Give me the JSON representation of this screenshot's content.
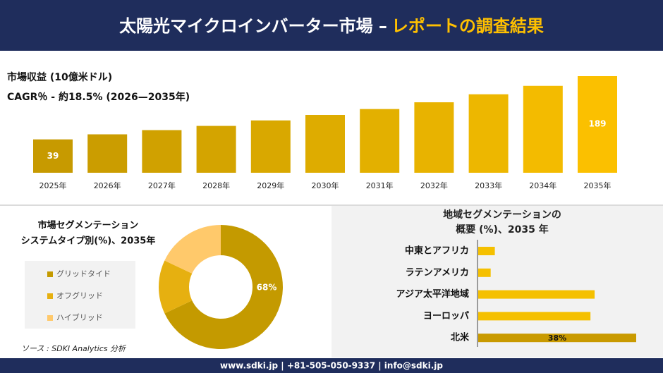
{
  "header": {
    "title": "太陽光マイクロインバーター市場 –",
    "title_highlight": "レポートの調査結果"
  },
  "chart_data": [
    {
      "type": "bar",
      "title": [
        "市場収益 (10億米ドル)",
        "CAGR％ - 約18.5% (2026—2035年)"
      ],
      "categories": [
        "2025年",
        "2026年",
        "2027年",
        "2028年",
        "2029年",
        "2030年",
        "2031年",
        "2032年",
        "2033年",
        "2034年",
        "2035年"
      ],
      "values": [
        39,
        51,
        61,
        71,
        84,
        97,
        111,
        127,
        146,
        166,
        189
      ],
      "value_labels": [
        "39",
        null,
        null,
        null,
        null,
        null,
        null,
        null,
        null,
        null,
        "189"
      ],
      "colors": [
        "#c79a00",
        "#cb9d00",
        "#d0a100",
        "#d4a400",
        "#d9a800",
        "#deac00",
        "#e3b000",
        "#e8b300",
        "#edb700",
        "#f3bb00",
        "#fbc000"
      ]
    },
    {
      "type": "pie",
      "donut": true,
      "title": [
        "市場セグメンテーション",
        "システムタイプ別(%)、2035年"
      ],
      "categories": [
        "グリッドタイド",
        "オフグリッド",
        "ハイブリッド"
      ],
      "values": [
        68,
        14,
        18
      ],
      "value_labels": [
        "68%",
        null,
        null
      ],
      "colors": [
        "#c49a00",
        "#e6b010",
        "#ffc96b"
      ]
    },
    {
      "type": "hbar",
      "title": [
        "地域セグメンテーションの",
        "概要 (%)、2035 年"
      ],
      "categories": [
        "中東とアフリカ",
        "ラテンアメリカ",
        "アジア太平洋地域",
        "ヨーロッパ",
        "北米"
      ],
      "values": [
        4,
        3,
        28,
        27,
        38
      ],
      "value_labels": [
        null,
        null,
        null,
        null,
        "38%"
      ],
      "colors": [
        "#f5c000",
        "#f5c000",
        "#f5c000",
        "#f5c000",
        "#c99a00"
      ]
    }
  ],
  "source": "ソース : SDKI Analytics 分析",
  "footer": "www.sdki.jp | +81-505-050-9337 | info@sdki.jp"
}
